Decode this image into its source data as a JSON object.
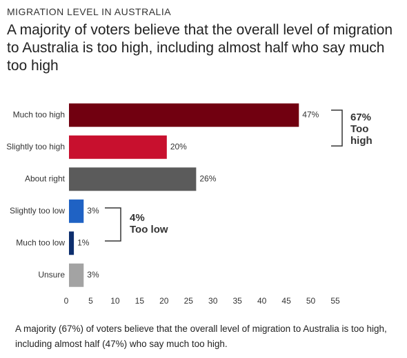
{
  "chart_data": {
    "type": "hbar",
    "kicker": "MIGRATION LEVEL IN AUSTRALIA",
    "title": "A majority of voters believe that the overall level of migration to Australia is too high, including almost half who say much too high",
    "categories": [
      "Much too high",
      "Slightly too high",
      "About right",
      "Slightly too low",
      "Much too low",
      "Unsure"
    ],
    "values": [
      47,
      20,
      26,
      3,
      1,
      3
    ],
    "value_labels": [
      "47%",
      "20%",
      "26%",
      "3%",
      "1%",
      "3%"
    ],
    "colors": [
      "#710010",
      "#c8102e",
      "#5b5b5b",
      "#1f62c4",
      "#0d2f6e",
      "#a3a3a3"
    ],
    "xlim": [
      0,
      55
    ],
    "xticks": [
      0,
      5,
      10,
      15,
      20,
      25,
      30,
      35,
      40,
      45,
      50,
      55
    ],
    "annotations": [
      {
        "value": "67%",
        "text": "Too high"
      },
      {
        "value": "4%",
        "text": "Too low"
      }
    ],
    "caption": "A majority (67%) of voters believe that the overall level of migration to Australia is too high, including almost half (47%) who say much too high."
  }
}
